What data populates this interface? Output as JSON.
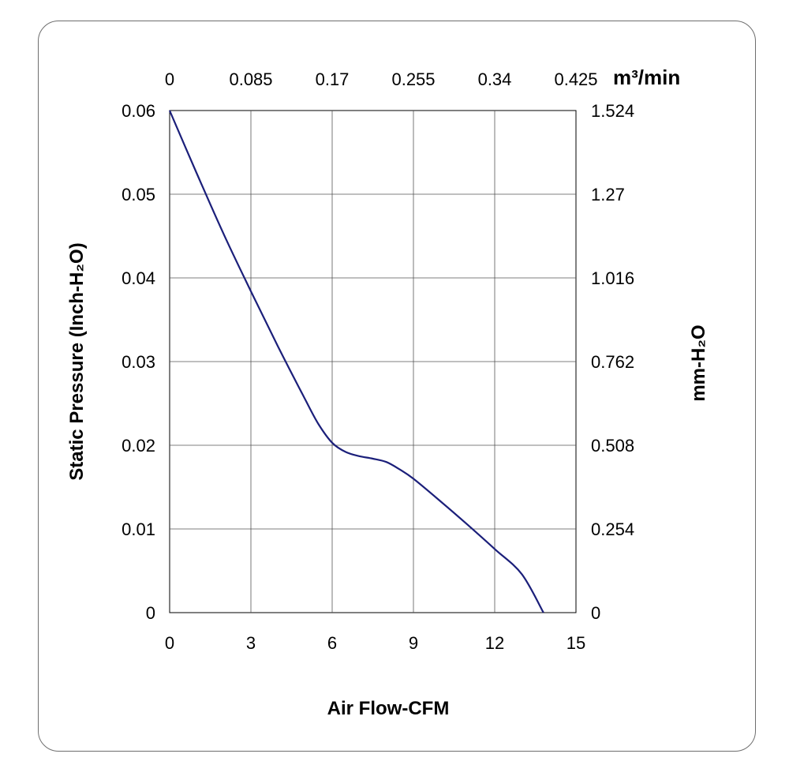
{
  "chart_data": {
    "type": "line",
    "xlabel": "Air Flow-CFM",
    "ylabel": "Static Pressure (Inch-H₂O)",
    "y2label": "mm-H₂O",
    "x2label": "m³/min",
    "xlim": [
      0,
      15
    ],
    "ylim": [
      0,
      0.06
    ],
    "grid": true,
    "x_ticks": [
      "0",
      "3",
      "6",
      "9",
      "12",
      "15"
    ],
    "y_ticks": [
      "0",
      "0.01",
      "0.02",
      "0.03",
      "0.04",
      "0.05",
      "0.06"
    ],
    "x2_ticks": [
      "0",
      "0.085",
      "0.17",
      "0.255",
      "0.34",
      "0.425"
    ],
    "y2_ticks": [
      "0",
      "0.254",
      "0.508",
      "0.762",
      "1.016",
      "1.27",
      "1.524"
    ],
    "series": [
      {
        "color": "#1b1f7a",
        "x": [
          0,
          1,
          2,
          3,
          4,
          5,
          5.5,
          6,
          6.5,
          7,
          7.5,
          8,
          8.5,
          9,
          10,
          11,
          12,
          13,
          13.8
        ],
        "y": [
          0.06,
          0.0525,
          0.0452,
          0.0384,
          0.0318,
          0.0255,
          0.0225,
          0.0203,
          0.0192,
          0.0187,
          0.0184,
          0.018,
          0.0171,
          0.016,
          0.0133,
          0.0105,
          0.0076,
          0.0046,
          0.0
        ]
      }
    ]
  }
}
